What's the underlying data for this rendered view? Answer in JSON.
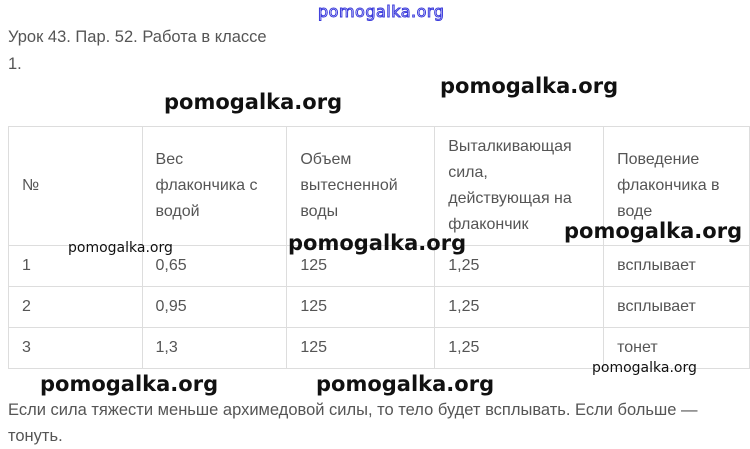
{
  "watermark": "pomogalka.org",
  "header": {
    "title": "Урок 43. Пар. 52. Работа в классе",
    "item": "1."
  },
  "table": {
    "headers": [
      "№",
      "Вес флакончика с водой",
      "Объем вытесненной воды",
      "Выталкивающая сила, действующая на флакончик",
      "Поведение флакончика в воде"
    ],
    "rows": [
      [
        "1",
        "0,65",
        "125",
        "1,25",
        "всплывает"
      ],
      [
        "2",
        "0,95",
        "125",
        "1,25",
        "всплывает"
      ],
      [
        "3",
        "1,3",
        "125",
        "1,25",
        "тонет"
      ]
    ]
  },
  "conclusion": "Если сила тяжести меньше архимедовой силы, то тело будет всплывать. Если больше — тонуть."
}
